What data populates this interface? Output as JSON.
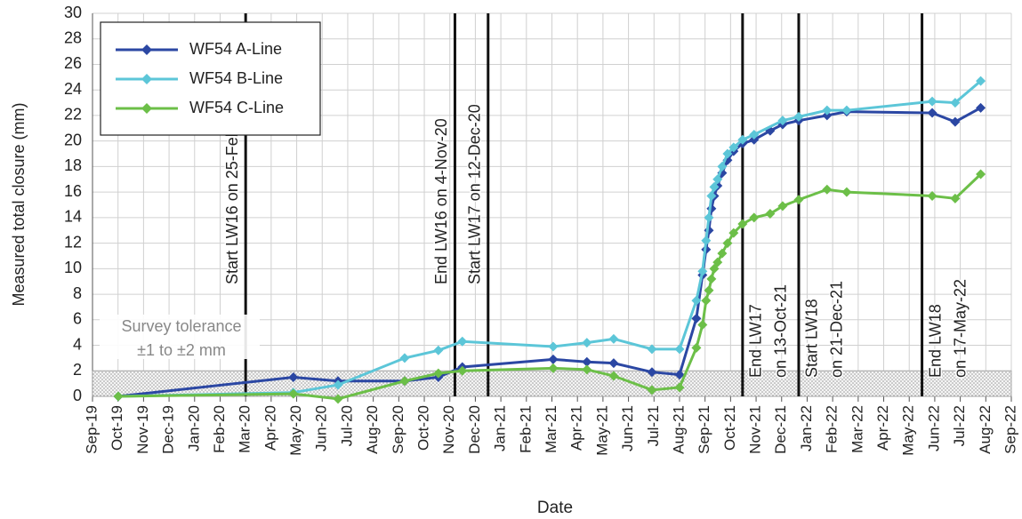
{
  "chart_data": {
    "type": "line",
    "y_label": "Measured total closure (mm)",
    "x_label": "Date",
    "ylim": [
      0,
      30
    ],
    "yticks": [
      0,
      2,
      4,
      6,
      8,
      10,
      12,
      14,
      16,
      18,
      20,
      22,
      24,
      26,
      28,
      30
    ],
    "xlim": [
      0,
      36
    ],
    "xticks": [
      {
        "value": 0,
        "label": "Sep-19"
      },
      {
        "value": 1,
        "label": "Oct-19"
      },
      {
        "value": 2,
        "label": "Nov-19"
      },
      {
        "value": 3,
        "label": "Dec-19"
      },
      {
        "value": 4,
        "label": "Jan-20"
      },
      {
        "value": 5,
        "label": "Feb-20"
      },
      {
        "value": 6,
        "label": "Mar-20"
      },
      {
        "value": 7,
        "label": "Apr-20"
      },
      {
        "value": 8,
        "label": "May-20"
      },
      {
        "value": 9,
        "label": "Jun-20"
      },
      {
        "value": 10,
        "label": "Jul-20"
      },
      {
        "value": 11,
        "label": "Aug-20"
      },
      {
        "value": 12,
        "label": "Sep-20"
      },
      {
        "value": 13,
        "label": "Oct-20"
      },
      {
        "value": 14,
        "label": "Nov-20"
      },
      {
        "value": 15,
        "label": "Dec-20"
      },
      {
        "value": 16,
        "label": "Jan-21"
      },
      {
        "value": 17,
        "label": "Feb-21"
      },
      {
        "value": 18,
        "label": "Mar-21"
      },
      {
        "value": 19,
        "label": "Apr-21"
      },
      {
        "value": 20,
        "label": "May-21"
      },
      {
        "value": 21,
        "label": "Jun-21"
      },
      {
        "value": 22,
        "label": "Jul-21"
      },
      {
        "value": 23,
        "label": "Aug-21"
      },
      {
        "value": 24,
        "label": "Sep-21"
      },
      {
        "value": 25,
        "label": "Oct-21"
      },
      {
        "value": 26,
        "label": "Nov-21"
      },
      {
        "value": 27,
        "label": "Dec-21"
      },
      {
        "value": 28,
        "label": "Jan-22"
      },
      {
        "value": 29,
        "label": "Feb-22"
      },
      {
        "value": 30,
        "label": "Mar-22"
      },
      {
        "value": 31,
        "label": "Apr-22"
      },
      {
        "value": 32,
        "label": "May-22"
      },
      {
        "value": 33,
        "label": "Jun-22"
      },
      {
        "value": 34,
        "label": "Jul-22"
      },
      {
        "value": 35,
        "label": "Aug-22"
      },
      {
        "value": 36,
        "label": "Sep-22"
      }
    ],
    "grid": true,
    "series": [
      {
        "name": "WF54 A-Line",
        "color": "#2b47a3",
        "x": [
          1.01,
          7.87,
          9.62,
          12.23,
          13.55,
          14.49,
          18.05,
          19.37,
          20.42,
          21.92,
          23.0,
          23.66,
          23.9,
          24.04,
          24.15,
          24.25,
          24.36,
          24.49,
          24.67,
          24.88,
          25.12,
          25.47,
          25.92,
          26.55,
          27.04,
          27.67,
          28.78,
          29.55,
          32.9,
          33.8,
          34.8
        ],
        "values": [
          0,
          1.5,
          1.2,
          1.2,
          1.5,
          2.3,
          2.9,
          2.7,
          2.6,
          1.9,
          1.7,
          6.1,
          9.5,
          11.5,
          13,
          14.7,
          15.7,
          16.5,
          17.5,
          18.5,
          19.2,
          19.8,
          20.1,
          20.8,
          21.3,
          21.6,
          22.0,
          22.3,
          22.2,
          21.5,
          22.6
        ]
      },
      {
        "name": "WF54 B-Line",
        "color": "#5cc6d8",
        "x": [
          1.01,
          7.87,
          9.62,
          12.23,
          13.55,
          14.49,
          18.05,
          19.37,
          20.42,
          21.92,
          23.0,
          23.66,
          23.9,
          24.04,
          24.15,
          24.25,
          24.36,
          24.49,
          24.67,
          24.88,
          25.12,
          25.47,
          25.92,
          27.04,
          27.67,
          28.78,
          29.55,
          32.9,
          33.8,
          34.8
        ],
        "values": [
          0,
          0.3,
          0.9,
          3.0,
          3.6,
          4.3,
          3.9,
          4.2,
          4.5,
          3.7,
          3.7,
          7.5,
          9.8,
          12.2,
          14,
          15.7,
          16.4,
          17,
          18,
          19,
          19.5,
          20.1,
          20.5,
          21.6,
          21.9,
          22.4,
          22.4,
          23.1,
          23.0,
          24.7
        ]
      },
      {
        "name": "WF54 C-Line",
        "color": "#6cbf48",
        "x": [
          1.01,
          7.87,
          9.62,
          12.23,
          13.55,
          14.49,
          18.05,
          19.37,
          20.42,
          21.92,
          23.0,
          23.66,
          23.9,
          24.04,
          24.15,
          24.25,
          24.36,
          24.49,
          24.67,
          24.88,
          25.12,
          25.47,
          25.92,
          26.55,
          27.04,
          27.67,
          28.78,
          29.55,
          32.9,
          33.8,
          34.8
        ],
        "values": [
          0,
          0.2,
          -0.2,
          1.2,
          1.8,
          2.0,
          2.2,
          2.1,
          1.6,
          0.5,
          0.7,
          3.8,
          5.6,
          7.5,
          8.3,
          9.2,
          10,
          10.5,
          11.2,
          12,
          12.8,
          13.5,
          14,
          14.3,
          14.9,
          15.4,
          16.2,
          16,
          15.7,
          15.5,
          17.4
        ]
      }
    ],
    "events": [
      {
        "x": 6.0,
        "lines": [
          "Start LW16 on 25-Feb-20"
        ]
      },
      {
        "x": 14.2,
        "lines": [
          "End LW16 on 4-Nov-20"
        ]
      },
      {
        "x": 15.5,
        "lines": [
          "Start LW17 on 12-Dec-20"
        ]
      },
      {
        "x": 25.47,
        "lines": [
          "End LW17",
          "on 13-Oct-21"
        ]
      },
      {
        "x": 27.67,
        "lines": [
          "Start LW18",
          "on 21-Dec-21"
        ]
      },
      {
        "x": 32.5,
        "lines": [
          "End LW18",
          "on 17-May-22"
        ]
      }
    ],
    "band": {
      "ymin": 0,
      "ymax": 2,
      "lines": [
        "Survey tolerance",
        "±1 to ±2 mm"
      ]
    },
    "legend": "upper left"
  }
}
